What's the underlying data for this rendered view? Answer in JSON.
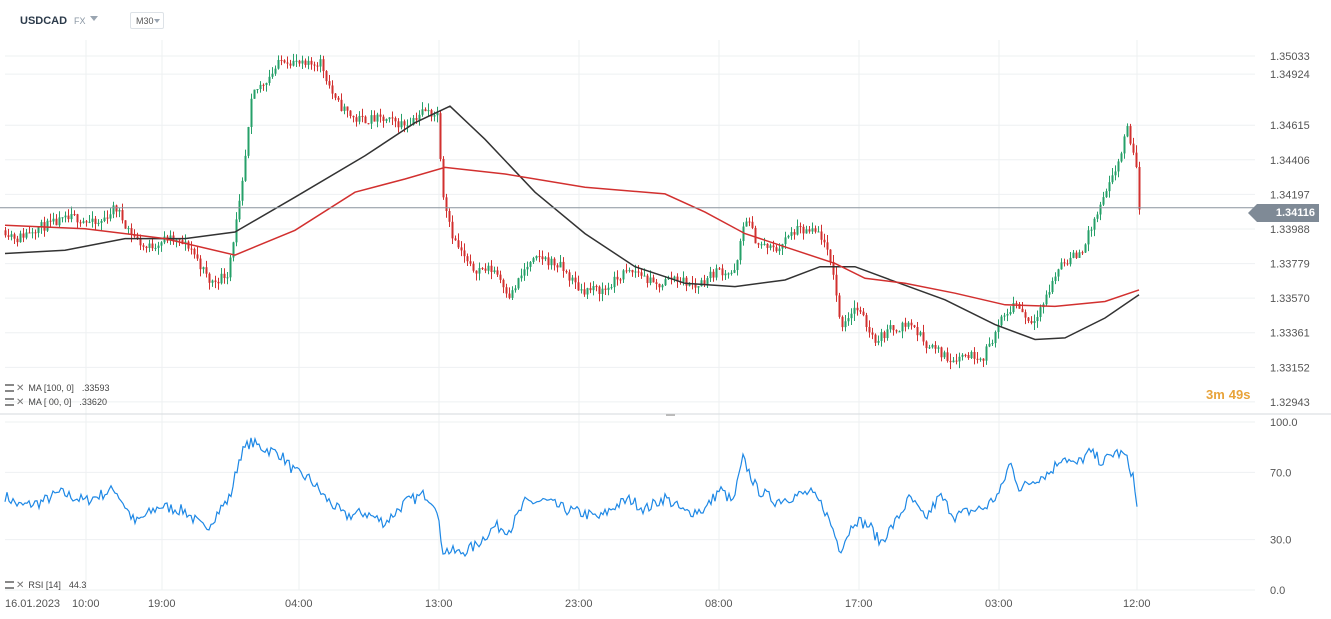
{
  "header": {
    "symbol": "USDCAD",
    "market": "FX",
    "timeframe": "M30"
  },
  "indicators": {
    "ma_slow": {
      "label": "MA [100, 0]",
      "value": ".33593",
      "color": "#333333"
    },
    "ma_fast": {
      "label": "MA [ 00, 0]",
      "value": ".33620",
      "color": "#d2302f"
    },
    "rsi": {
      "label": "RSI [14]",
      "value": "44.3",
      "color": "#1e88e5"
    }
  },
  "countdown": {
    "minutes": "3m",
    "seconds": "49s"
  },
  "current_price": "1.34116",
  "colors": {
    "up": "#26a069",
    "down": "#d2302f",
    "grid": "#eef0f2",
    "axis_text": "#555555"
  },
  "chart_data": [
    {
      "type": "candlestick",
      "title": "USDCAD",
      "timeframe": "M30",
      "x_labels": [
        "16.01.2023",
        "10:00",
        "19:00",
        "04:00",
        "13:00",
        "23:00",
        "08:00",
        "17:00",
        "03:00",
        "12:00"
      ],
      "y_ticks": [
        "1.35033",
        "1.34924",
        "1.34615",
        "1.34406",
        "1.34197",
        "1.33988",
        "1.33779",
        "1.33570",
        "1.33361",
        "1.33152",
        "1.32943"
      ],
      "ylim": [
        1.3287,
        1.3513
      ],
      "last_price": 1.34116,
      "ohlc_path": [
        [
          0,
          1.3398
        ],
        [
          12,
          1.3393
        ],
        [
          28,
          1.3399
        ],
        [
          48,
          1.3402
        ],
        [
          70,
          1.3406
        ],
        [
          92,
          1.3401
        ],
        [
          110,
          1.3412
        ],
        [
          125,
          1.3397
        ],
        [
          140,
          1.3387
        ],
        [
          162,
          1.3393
        ],
        [
          185,
          1.3388
        ],
        [
          205,
          1.3366
        ],
        [
          222,
          1.3372
        ],
        [
          236,
          1.342
        ],
        [
          247,
          1.348
        ],
        [
          265,
          1.3492
        ],
        [
          278,
          1.3502
        ],
        [
          300,
          1.3497
        ],
        [
          315,
          1.35
        ],
        [
          330,
          1.3476
        ],
        [
          350,
          1.3465
        ],
        [
          375,
          1.3465
        ],
        [
          400,
          1.3462
        ],
        [
          418,
          1.347
        ],
        [
          432,
          1.3468
        ],
        [
          438,
          1.342
        ],
        [
          448,
          1.3393
        ],
        [
          465,
          1.3375
        ],
        [
          490,
          1.3374
        ],
        [
          505,
          1.3358
        ],
        [
          520,
          1.3375
        ],
        [
          535,
          1.3382
        ],
        [
          555,
          1.3376
        ],
        [
          575,
          1.3362
        ],
        [
          600,
          1.3362
        ],
        [
          618,
          1.3372
        ],
        [
          633,
          1.3373
        ],
        [
          650,
          1.3364
        ],
        [
          668,
          1.337
        ],
        [
          690,
          1.3364
        ],
        [
          712,
          1.3374
        ],
        [
          730,
          1.3372
        ],
        [
          740,
          1.3407
        ],
        [
          752,
          1.339
        ],
        [
          770,
          1.3386
        ],
        [
          790,
          1.3398
        ],
        [
          815,
          1.3396
        ],
        [
          828,
          1.3373
        ],
        [
          835,
          1.334
        ],
        [
          850,
          1.3352
        ],
        [
          870,
          1.3332
        ],
        [
          885,
          1.3338
        ],
        [
          905,
          1.3342
        ],
        [
          920,
          1.333
        ],
        [
          945,
          1.332
        ],
        [
          960,
          1.3323
        ],
        [
          978,
          1.3322
        ],
        [
          995,
          1.3342
        ],
        [
          1010,
          1.3355
        ],
        [
          1025,
          1.3342
        ],
        [
          1040,
          1.3356
        ],
        [
          1055,
          1.3378
        ],
        [
          1075,
          1.3384
        ],
        [
          1090,
          1.3405
        ],
        [
          1105,
          1.3426
        ],
        [
          1115,
          1.3443
        ],
        [
          1122,
          1.3459
        ],
        [
          1130,
          1.3441
        ],
        [
          1134,
          1.3412
        ]
      ],
      "series": [
        {
          "name": "MA [100, 0]",
          "color": "#333333",
          "points": [
            [
              0,
              1.3384
            ],
            [
              60,
              1.3386
            ],
            [
              120,
              1.3393
            ],
            [
              180,
              1.3393
            ],
            [
              230,
              1.3397
            ],
            [
              290,
              1.3418
            ],
            [
              360,
              1.3443
            ],
            [
              410,
              1.3463
            ],
            [
              445,
              1.3473
            ],
            [
              480,
              1.3453
            ],
            [
              530,
              1.3421
            ],
            [
              580,
              1.3396
            ],
            [
              630,
              1.3376
            ],
            [
              680,
              1.3366
            ],
            [
              730,
              1.3364
            ],
            [
              780,
              1.3368
            ],
            [
              815,
              1.3376
            ],
            [
              850,
              1.3376
            ],
            [
              890,
              1.3367
            ],
            [
              940,
              1.3356
            ],
            [
              990,
              1.3341
            ],
            [
              1030,
              1.3332
            ],
            [
              1060,
              1.3333
            ],
            [
              1100,
              1.3345
            ],
            [
              1134,
              1.3359
            ]
          ]
        },
        {
          "name": "MA [ 00, 0]",
          "color": "#d2302f",
          "points": [
            [
              0,
              1.3401
            ],
            [
              80,
              1.3399
            ],
            [
              160,
              1.3393
            ],
            [
              230,
              1.3383
            ],
            [
              290,
              1.3398
            ],
            [
              350,
              1.3421
            ],
            [
              400,
              1.3429
            ],
            [
              440,
              1.3436
            ],
            [
              500,
              1.3432
            ],
            [
              580,
              1.3424
            ],
            [
              660,
              1.342
            ],
            [
              700,
              1.3409
            ],
            [
              740,
              1.3396
            ],
            [
              790,
              1.3386
            ],
            [
              830,
              1.3378
            ],
            [
              860,
              1.3369
            ],
            [
              900,
              1.3366
            ],
            [
              950,
              1.336
            ],
            [
              1000,
              1.3353
            ],
            [
              1050,
              1.3352
            ],
            [
              1100,
              1.3355
            ],
            [
              1134,
              1.3362
            ]
          ]
        }
      ]
    },
    {
      "type": "line",
      "title": "RSI [14]",
      "y_ticks": [
        "100.0",
        "70.0",
        "30.0",
        "0.0"
      ],
      "ylim": [
        0,
        100
      ],
      "last_value": 44.3,
      "points": [
        [
          0,
          56
        ],
        [
          15,
          50
        ],
        [
          35,
          52
        ],
        [
          55,
          58
        ],
        [
          80,
          53
        ],
        [
          110,
          60
        ],
        [
          130,
          40
        ],
        [
          155,
          50
        ],
        [
          180,
          47
        ],
        [
          200,
          36
        ],
        [
          215,
          48
        ],
        [
          225,
          55
        ],
        [
          235,
          80
        ],
        [
          245,
          88
        ],
        [
          260,
          84
        ],
        [
          275,
          81
        ],
        [
          290,
          70
        ],
        [
          305,
          66
        ],
        [
          320,
          55
        ],
        [
          340,
          44
        ],
        [
          360,
          46
        ],
        [
          380,
          40
        ],
        [
          400,
          52
        ],
        [
          420,
          57
        ],
        [
          430,
          52
        ],
        [
          438,
          24
        ],
        [
          455,
          22
        ],
        [
          470,
          26
        ],
        [
          490,
          38
        ],
        [
          505,
          36
        ],
        [
          520,
          52
        ],
        [
          540,
          53
        ],
        [
          560,
          48
        ],
        [
          575,
          46
        ],
        [
          595,
          43
        ],
        [
          610,
          50
        ],
        [
          625,
          54
        ],
        [
          640,
          48
        ],
        [
          660,
          55
        ],
        [
          680,
          46
        ],
        [
          700,
          48
        ],
        [
          715,
          60
        ],
        [
          728,
          52
        ],
        [
          738,
          78
        ],
        [
          752,
          60
        ],
        [
          770,
          53
        ],
        [
          790,
          56
        ],
        [
          805,
          58
        ],
        [
          818,
          50
        ],
        [
          828,
          36
        ],
        [
          835,
          24
        ],
        [
          850,
          42
        ],
        [
          865,
          38
        ],
        [
          875,
          28
        ],
        [
          890,
          40
        ],
        [
          905,
          55
        ],
        [
          920,
          42
        ],
        [
          935,
          56
        ],
        [
          950,
          44
        ],
        [
          965,
          47
        ],
        [
          980,
          49
        ],
        [
          995,
          58
        ],
        [
          1005,
          76
        ],
        [
          1015,
          60
        ],
        [
          1030,
          66
        ],
        [
          1045,
          70
        ],
        [
          1058,
          80
        ],
        [
          1070,
          74
        ],
        [
          1085,
          82
        ],
        [
          1098,
          76
        ],
        [
          1110,
          82
        ],
        [
          1120,
          80
        ],
        [
          1128,
          68
        ],
        [
          1133,
          44
        ]
      ]
    }
  ]
}
